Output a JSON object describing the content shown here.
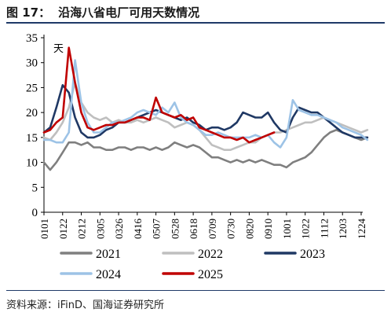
{
  "header": {
    "fig_label": "图 17：",
    "title": "沿海八省电厂可用天数情况"
  },
  "source": "资料来源：iFinD、国海证券研究所",
  "colors": {
    "2021": "#7f7f7f",
    "2022": "#bfbfbf",
    "2023": "#1f3864",
    "2024": "#9dc3e6",
    "2025": "#c00000",
    "rule": "#1f3a68"
  },
  "chart_data": {
    "type": "line",
    "title": "",
    "ylabel": "天",
    "xlabel": "",
    "ylim": [
      0,
      35
    ],
    "yticks": [
      0,
      5,
      10,
      15,
      20,
      25,
      30,
      35
    ],
    "xticks": [
      "0101",
      "0122",
      "0212",
      "0305",
      "0326",
      "0416",
      "0507",
      "0528",
      "0618",
      "0709",
      "0730",
      "0820",
      "0910",
      "1001",
      "1022",
      "1112",
      "1203",
      "1224"
    ],
    "legend_position": "bottom",
    "grid": false,
    "series": [
      {
        "name": "2021",
        "x": [
          "0101",
          "0108",
          "0115",
          "0122",
          "0129",
          "0205",
          "0212",
          "0219",
          "0226",
          "0305",
          "0312",
          "0319",
          "0326",
          "0402",
          "0409",
          "0416",
          "0423",
          "0430",
          "0507",
          "0514",
          "0521",
          "0528",
          "0604",
          "0611",
          "0618",
          "0625",
          "0702",
          "0709",
          "0716",
          "0723",
          "0730",
          "0806",
          "0813",
          "0820",
          "0827",
          "0903",
          "0910",
          "0917",
          "0924",
          "1001",
          "1008",
          "1015",
          "1022",
          "1029",
          "1105",
          "1112",
          "1119",
          "1126",
          "1203",
          "1210",
          "1217",
          "1224",
          "1231"
        ],
        "values": [
          10,
          8.5,
          10,
          12,
          14,
          14,
          13.5,
          14,
          13,
          13,
          12.5,
          12.5,
          13,
          13,
          12.5,
          13,
          13,
          12.5,
          13,
          12.5,
          13,
          14,
          13.5,
          13,
          13.5,
          13,
          12,
          11,
          11,
          10.5,
          10,
          10.5,
          10,
          10.5,
          10,
          10.5,
          10,
          9.5,
          9.5,
          9,
          10,
          10.5,
          11,
          12,
          13.5,
          15,
          16,
          16.5,
          16,
          15.5,
          15,
          14.5,
          15
        ]
      },
      {
        "name": "2022",
        "x": [
          "0101",
          "0108",
          "0115",
          "0122",
          "0129",
          "0205",
          "0212",
          "0219",
          "0226",
          "0305",
          "0312",
          "0319",
          "0326",
          "0402",
          "0409",
          "0416",
          "0423",
          "0430",
          "0507",
          "0514",
          "0521",
          "0528",
          "0604",
          "0611",
          "0618",
          "0625",
          "0702",
          "0709",
          "0716",
          "0723",
          "0730",
          "0806",
          "0813",
          "0820",
          "0827",
          "0903",
          "0910",
          "0917",
          "0924",
          "1001",
          "1008",
          "1015",
          "1022",
          "1029",
          "1105",
          "1112",
          "1119",
          "1126",
          "1203",
          "1210",
          "1217",
          "1224",
          "1231"
        ],
        "values": [
          15,
          14.5,
          16,
          18,
          21,
          26,
          22,
          20,
          19,
          18.5,
          19,
          18,
          18.5,
          18,
          18,
          18.5,
          18,
          18.5,
          19,
          18.5,
          18,
          17,
          17.5,
          18,
          17.5,
          16.5,
          15,
          13.5,
          13,
          12.5,
          12.5,
          13,
          13.5,
          14,
          14,
          15,
          15.5,
          16,
          16,
          16.5,
          17,
          17.5,
          18,
          18,
          18.5,
          19,
          18.5,
          18,
          17.5,
          17,
          16.5,
          16,
          16.5
        ]
      },
      {
        "name": "2023",
        "x": [
          "0101",
          "0108",
          "0115",
          "0122",
          "0129",
          "0205",
          "0212",
          "0219",
          "0226",
          "0305",
          "0312",
          "0319",
          "0326",
          "0402",
          "0409",
          "0416",
          "0423",
          "0430",
          "0507",
          "0514",
          "0521",
          "0528",
          "0604",
          "0611",
          "0618",
          "0625",
          "0702",
          "0709",
          "0716",
          "0723",
          "0730",
          "0806",
          "0813",
          "0820",
          "0827",
          "0903",
          "0910",
          "0917",
          "0924",
          "1001",
          "1008",
          "1015",
          "1022",
          "1029",
          "1105",
          "1112",
          "1119",
          "1126",
          "1203",
          "1210",
          "1217",
          "1224",
          "1231"
        ],
        "values": [
          16,
          17,
          21,
          25.5,
          24,
          19,
          16,
          15,
          15,
          15.5,
          16.5,
          17,
          18,
          18,
          18.5,
          19,
          19.5,
          20,
          20.5,
          20,
          19.5,
          19,
          18.5,
          19,
          18,
          17.5,
          16.5,
          17,
          17,
          16.5,
          17,
          18,
          20,
          19.5,
          19,
          19,
          20,
          18,
          16.5,
          16,
          19,
          21,
          20.5,
          20,
          20,
          19,
          18,
          17,
          16,
          15.5,
          15,
          15,
          15
        ]
      },
      {
        "name": "2024",
        "x": [
          "0101",
          "0108",
          "0115",
          "0122",
          "0129",
          "0205",
          "0212",
          "0219",
          "0226",
          "0305",
          "0312",
          "0319",
          "0326",
          "0402",
          "0409",
          "0416",
          "0423",
          "0430",
          "0507",
          "0514",
          "0521",
          "0528",
          "0604",
          "0611",
          "0618",
          "0625",
          "0702",
          "0709",
          "0716",
          "0723",
          "0730",
          "0806",
          "0813",
          "0820",
          "0827",
          "0903",
          "0910",
          "0917",
          "0924",
          "1001",
          "1008",
          "1015",
          "1022",
          "1029",
          "1105",
          "1112",
          "1119",
          "1126",
          "1203",
          "1210",
          "1217",
          "1224",
          "1231"
        ],
        "values": [
          14.5,
          14.5,
          14,
          14,
          16,
          30.5,
          22,
          18,
          16,
          16,
          17,
          18,
          18,
          18.5,
          19,
          20,
          20.5,
          20,
          19.5,
          21,
          20,
          22,
          19,
          18,
          17.5,
          16.5,
          15.5,
          15.5,
          16,
          15.5,
          15,
          15,
          15,
          15,
          15.5,
          15,
          15.5,
          14,
          13,
          15,
          22.5,
          20.5,
          20,
          19.5,
          19.5,
          19,
          18.5,
          18,
          17,
          16.5,
          16,
          15.5,
          14.5
        ]
      },
      {
        "name": "2025",
        "x": [
          "0101",
          "0108",
          "0115",
          "0122",
          "0129",
          "0205",
          "0212",
          "0219",
          "0226",
          "0305",
          "0312",
          "0319",
          "0326",
          "0402",
          "0409",
          "0416",
          "0423",
          "0430",
          "0507",
          "0514",
          "0521",
          "0528",
          "0604",
          "0611",
          "0618",
          "0625",
          "0702",
          "0709",
          "0716",
          "0723",
          "0730",
          "0806",
          "0813",
          "0820",
          "0827",
          "0903",
          "0910",
          "0917"
        ],
        "values": [
          16,
          16.5,
          18,
          19,
          33,
          26,
          20,
          17,
          16.5,
          17,
          17.5,
          17.5,
          18,
          18,
          18.5,
          19,
          19,
          18.5,
          23,
          20,
          19.5,
          19,
          19.5,
          18.5,
          19,
          17,
          16.5,
          16,
          15.5,
          15,
          15,
          14.5,
          15,
          14,
          14.5,
          15,
          15.5,
          16
        ]
      }
    ]
  }
}
